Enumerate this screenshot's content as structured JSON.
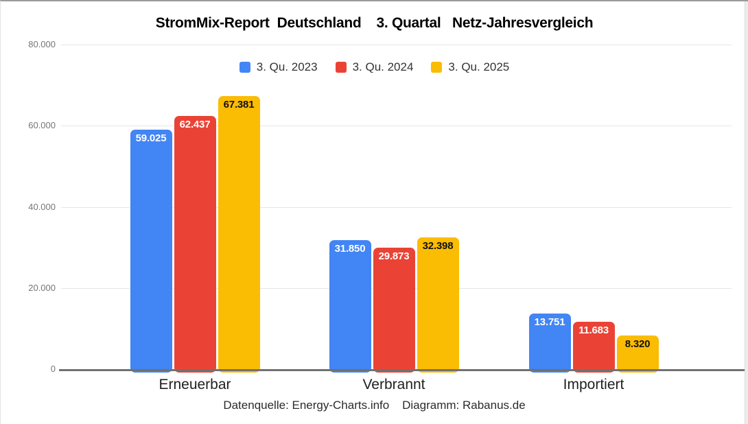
{
  "page": {
    "title": "StromMix-Report  Deutschland    3. Quartal   Netz-Jahresvergleich",
    "footer": "Datenquelle: Energy-Charts.info    Diagramm: Rabanus.de"
  },
  "chart_data": {
    "type": "bar",
    "title": "StromMix-Report Deutschland 3. Quartal Netz-Jahresvergleich",
    "categories": [
      "Erneuerbar",
      "Verbrannt",
      "Importiert"
    ],
    "series": [
      {
        "name": "3. Qu. 2023",
        "color": "#4285F4",
        "label_color": "#FFFFFF",
        "values": [
          59025,
          31850,
          13751
        ],
        "value_labels": [
          "59.025",
          "31.850",
          "13.751"
        ]
      },
      {
        "name": "3. Qu. 2024",
        "color": "#EA4335",
        "label_color": "#FFFFFF",
        "values": [
          62437,
          29873,
          11683
        ],
        "value_labels": [
          "62.437",
          "29.873",
          "11.683"
        ]
      },
      {
        "name": "3. Qu. 2025",
        "color": "#FBBC04",
        "label_color": "#111111",
        "values": [
          67381,
          32398,
          8320
        ],
        "value_labels": [
          "67.381",
          "32.398",
          "8.320"
        ]
      }
    ],
    "ylim": [
      0,
      80000
    ],
    "yticks": [
      {
        "value": 0,
        "label": "0"
      },
      {
        "value": 20000,
        "label": "20.000"
      },
      {
        "value": 40000,
        "label": "40.000"
      },
      {
        "value": 60000,
        "label": "60.000"
      },
      {
        "value": 80000,
        "label": "80.000"
      }
    ],
    "grid": true,
    "legend_position": "top",
    "grid_color": "#e6e6e6",
    "axis_color": "#717171",
    "tick_label_color": "#757575",
    "footer": "Datenquelle: Energy-Charts.info    Diagramm: Rabanus.de"
  }
}
